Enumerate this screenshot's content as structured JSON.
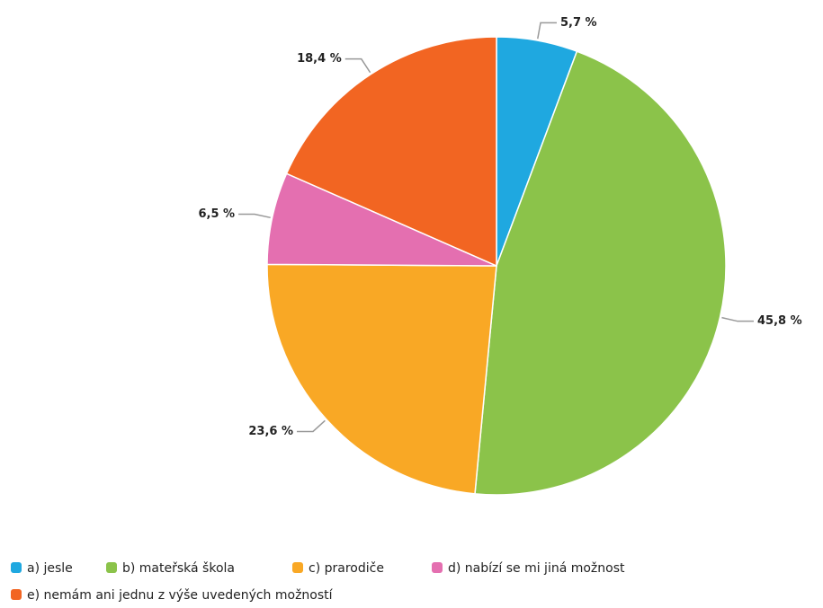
{
  "chart_data": {
    "type": "pie",
    "categories": [
      "a) jesle",
      "b) mateřská škola",
      "c) prarodiče",
      "d) nabízí se mi jiná možnost",
      "e) nemám ani jednu z výše uvedených možností"
    ],
    "values": [
      5.7,
      45.8,
      23.6,
      6.5,
      18.4
    ],
    "value_labels": [
      "5,7 %",
      "45,8 %",
      "23,6 %",
      "6,5 %",
      "18,4 %"
    ],
    "colors": [
      "#1fa8e0",
      "#8bc34a",
      "#f9a825",
      "#e46fb0",
      "#f26522"
    ],
    "legend": "bottom"
  }
}
